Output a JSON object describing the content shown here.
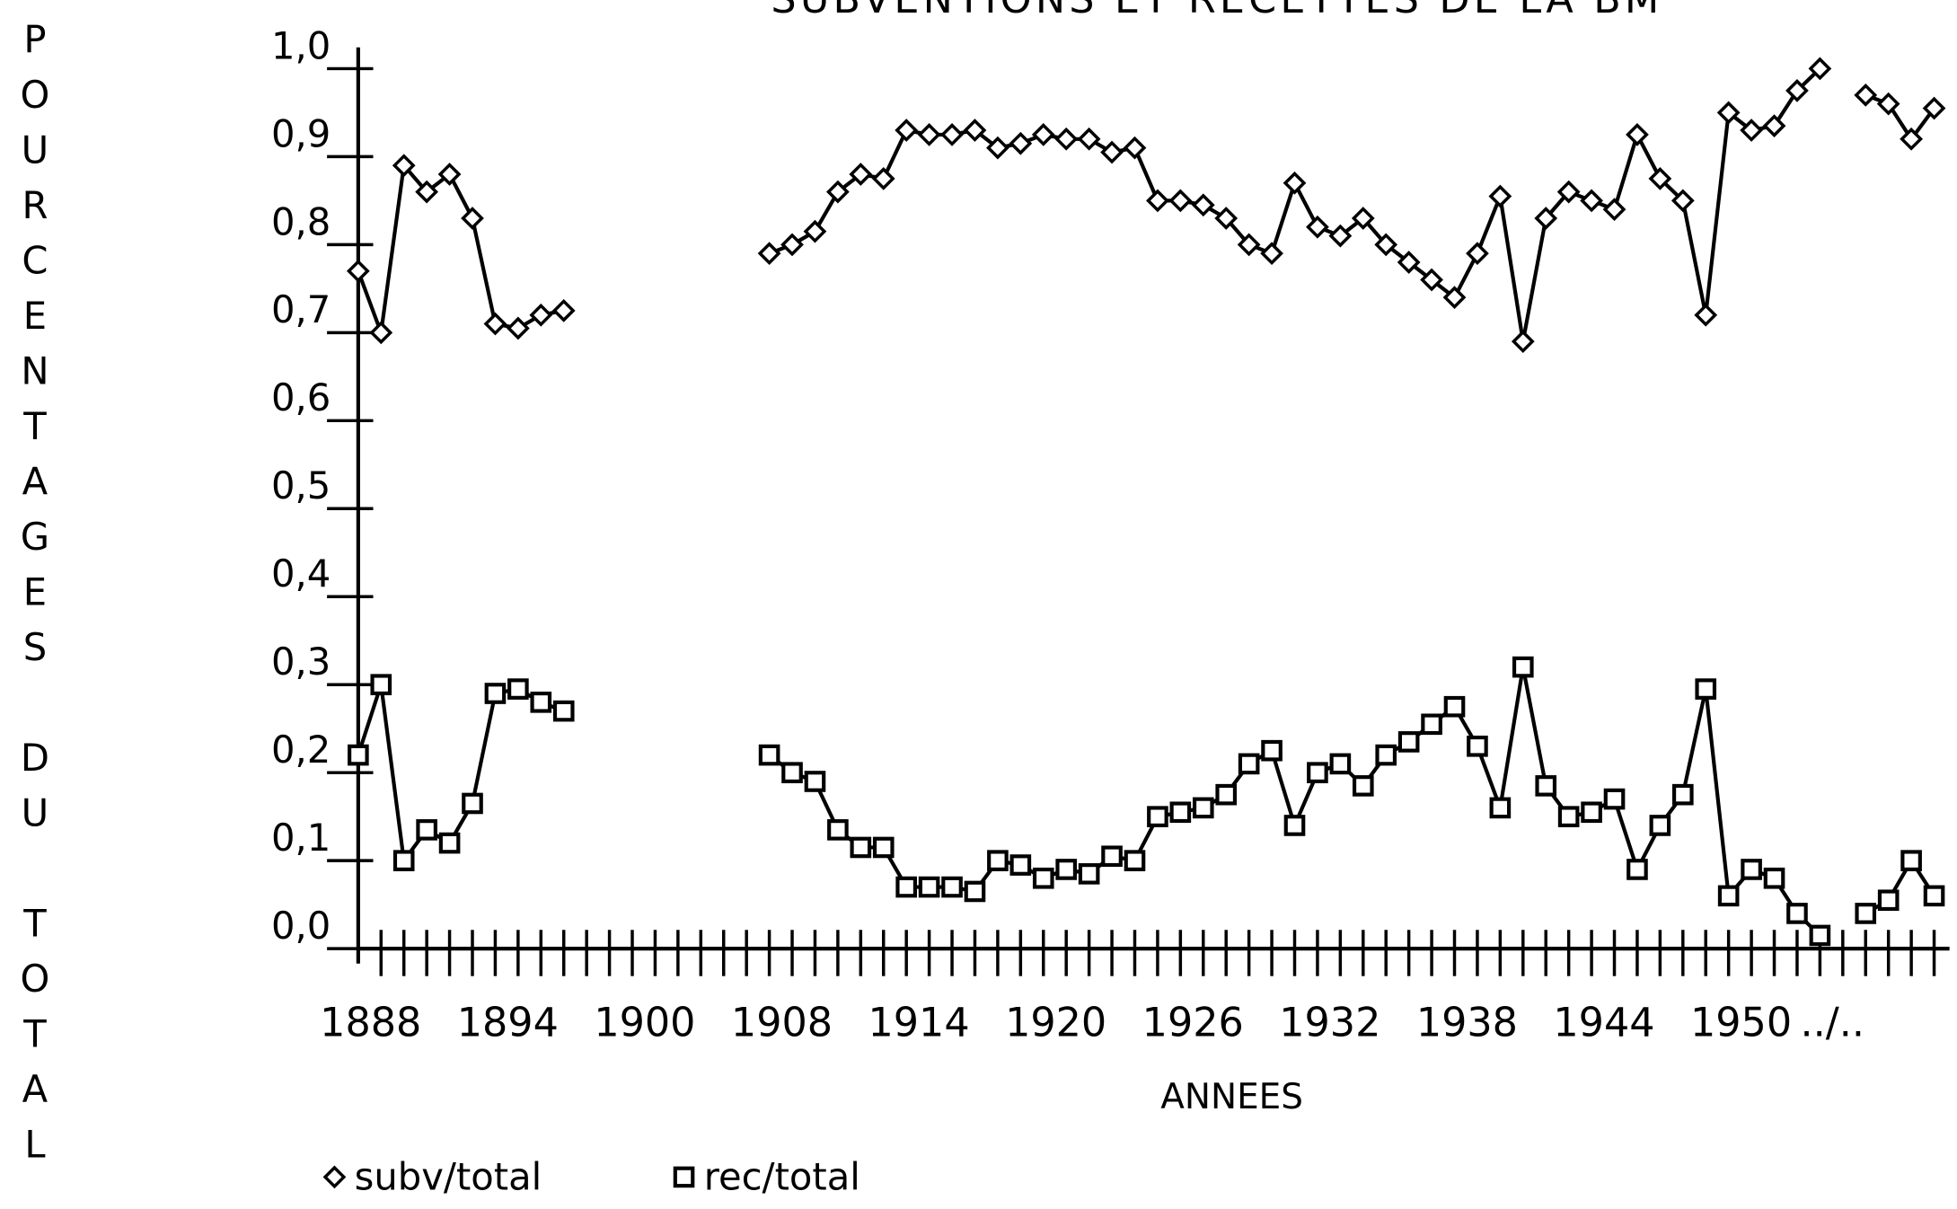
{
  "chart_data": {
    "type": "line",
    "title": "SUBVENTIONS ET RECETTES DE LA BM",
    "y_label": "POURCENTAGES DU TOTAL",
    "x_label": "ANNEES",
    "categories": [
      "1888",
      null,
      null,
      null,
      null,
      null,
      "1894",
      null,
      null,
      null,
      null,
      null,
      "1900",
      null,
      null,
      null,
      null,
      null,
      "1908",
      null,
      null,
      null,
      null,
      null,
      "1914",
      null,
      null,
      null,
      null,
      null,
      "1920",
      null,
      null,
      null,
      null,
      null,
      "1926",
      null,
      null,
      null,
      null,
      null,
      "1932",
      null,
      null,
      null,
      null,
      null,
      "1938",
      null,
      null,
      null,
      null,
      null,
      "1944",
      null,
      null,
      null,
      null,
      null,
      "1950",
      null,
      null,
      null,
      "../..",
      null,
      null,
      null,
      null,
      null
    ],
    "series": [
      {
        "name": "subv/total",
        "color": "#000000",
        "marker": "diamond",
        "values": [
          0.77,
          0.7,
          0.89,
          0.86,
          0.88,
          0.83,
          0.71,
          0.705,
          0.72,
          0.725,
          null,
          null,
          null,
          null,
          null,
          null,
          null,
          null,
          0.79,
          0.8,
          0.815,
          0.86,
          0.88,
          0.875,
          0.93,
          0.925,
          0.925,
          0.93,
          0.91,
          0.915,
          0.925,
          0.92,
          0.92,
          0.905,
          0.91,
          0.85,
          0.85,
          0.845,
          0.83,
          0.8,
          0.79,
          0.87,
          0.82,
          0.81,
          0.83,
          0.8,
          0.78,
          0.76,
          0.74,
          0.79,
          0.855,
          0.69,
          0.83,
          0.86,
          0.85,
          0.84,
          0.925,
          0.875,
          0.85,
          0.72,
          0.95,
          0.93,
          0.935,
          0.975,
          1.0,
          null,
          0.97,
          0.96,
          0.92,
          0.955
        ]
      },
      {
        "name": "rec/total",
        "color": "#000000",
        "marker": "square",
        "values": [
          0.22,
          0.3,
          0.1,
          0.135,
          0.12,
          0.165,
          0.29,
          0.295,
          0.28,
          0.27,
          null,
          null,
          null,
          null,
          null,
          null,
          null,
          null,
          0.22,
          0.2,
          0.19,
          0.135,
          0.115,
          0.115,
          0.07,
          0.07,
          0.07,
          0.065,
          0.1,
          0.095,
          0.08,
          0.09,
          0.085,
          0.105,
          0.1,
          0.15,
          0.155,
          0.16,
          0.175,
          0.21,
          0.225,
          0.14,
          0.2,
          0.21,
          0.185,
          0.22,
          0.235,
          0.255,
          0.275,
          0.23,
          0.16,
          0.32,
          0.185,
          0.15,
          0.155,
          0.17,
          0.09,
          0.14,
          0.175,
          0.295,
          0.06,
          0.09,
          0.08,
          0.04,
          0.015,
          null,
          0.04,
          0.055,
          0.1,
          0.06
        ]
      }
    ],
    "ylim": [
      0,
      1.0
    ],
    "yticks": [
      {
        "value": 0,
        "label": "0,0"
      },
      {
        "value": 0.1,
        "label": "0,1"
      },
      {
        "value": 0.2,
        "label": "0,2"
      },
      {
        "value": 0.3,
        "label": "0,3"
      },
      {
        "value": 0.4,
        "label": "0,4"
      },
      {
        "value": 0.5,
        "label": "0,5"
      },
      {
        "value": 0.6,
        "label": "0,6"
      },
      {
        "value": 0.7,
        "label": "0,7"
      },
      {
        "value": 0.8,
        "label": "0,8"
      },
      {
        "value": 0.9,
        "label": "0,9"
      },
      {
        "value": 1.0,
        "label": "1,0"
      }
    ],
    "grid": false,
    "legend": "bottom-left"
  }
}
